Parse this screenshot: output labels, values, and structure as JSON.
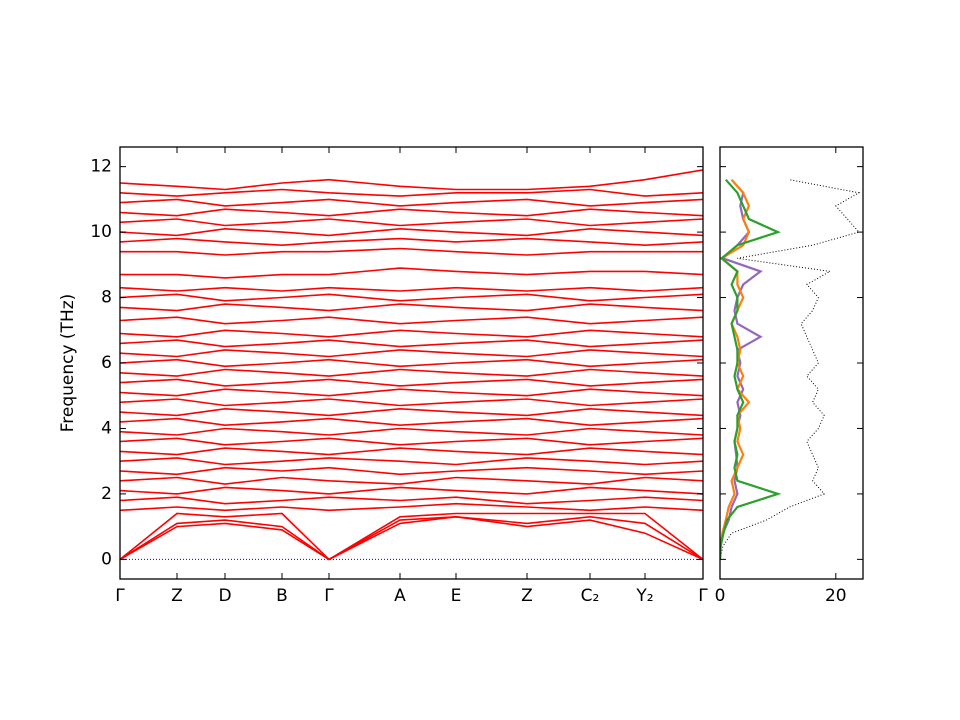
{
  "chart_data": [
    {
      "type": "line",
      "ylabel": "Frequency (THz)",
      "color": "#ff0000",
      "x": [
        0,
        0.57,
        1.05,
        1.62,
        2.09,
        2.8,
        3.36,
        4.07,
        4.7,
        5.25,
        5.83
      ],
      "xlim": [
        0,
        5.83
      ],
      "xticks": [
        {
          "value": 0,
          "label": "Γ"
        },
        {
          "value": 0.57,
          "label": "Z"
        },
        {
          "value": 1.05,
          "label": "D"
        },
        {
          "value": 1.62,
          "label": "B"
        },
        {
          "value": 2.09,
          "label": "Γ"
        },
        {
          "value": 2.8,
          "label": "A"
        },
        {
          "value": 3.36,
          "label": "E"
        },
        {
          "value": 4.07,
          "label": "Z"
        },
        {
          "value": 4.7,
          "label": "C₂"
        },
        {
          "value": 5.25,
          "label": "Y₂"
        },
        {
          "value": 5.83,
          "label": "Γ"
        }
      ],
      "ylim": [
        -0.6,
        12.6
      ],
      "yticks": [
        0,
        2,
        4,
        6,
        8,
        10,
        12
      ],
      "series": [
        {
          "values": [
            0,
            1.0,
            1.1,
            0.9,
            0,
            1.1,
            1.3,
            1.0,
            1.2,
            0.8,
            0
          ]
        },
        {
          "values": [
            0,
            1.1,
            1.2,
            1.0,
            0,
            1.2,
            1.3,
            1.1,
            1.3,
            1.1,
            0
          ]
        },
        {
          "values": [
            0,
            1.4,
            1.3,
            1.4,
            0,
            1.3,
            1.4,
            1.4,
            1.4,
            1.4,
            0
          ]
        },
        {
          "values": [
            1.5,
            1.6,
            1.5,
            1.6,
            1.5,
            1.6,
            1.7,
            1.6,
            1.5,
            1.6,
            1.5
          ]
        },
        {
          "values": [
            1.8,
            1.9,
            1.7,
            1.8,
            1.9,
            1.8,
            1.9,
            1.7,
            1.8,
            1.9,
            1.8
          ]
        },
        {
          "values": [
            2.1,
            2.0,
            2.2,
            2.1,
            2.0,
            2.2,
            2.1,
            2.0,
            2.2,
            2.1,
            2.0
          ]
        },
        {
          "values": [
            2.4,
            2.5,
            2.3,
            2.5,
            2.4,
            2.3,
            2.5,
            2.4,
            2.3,
            2.5,
            2.4
          ]
        },
        {
          "values": [
            2.7,
            2.6,
            2.8,
            2.7,
            2.8,
            2.6,
            2.7,
            2.8,
            2.7,
            2.6,
            2.7
          ]
        },
        {
          "values": [
            3.0,
            3.1,
            2.9,
            3.0,
            3.1,
            3.0,
            2.9,
            3.1,
            3.0,
            2.9,
            3.0
          ]
        },
        {
          "values": [
            3.3,
            3.2,
            3.4,
            3.3,
            3.2,
            3.4,
            3.3,
            3.2,
            3.4,
            3.3,
            3.2
          ]
        },
        {
          "values": [
            3.6,
            3.7,
            3.5,
            3.6,
            3.7,
            3.5,
            3.6,
            3.7,
            3.5,
            3.6,
            3.7
          ]
        },
        {
          "values": [
            3.9,
            3.8,
            4.0,
            3.9,
            3.8,
            4.0,
            3.9,
            3.8,
            4.0,
            3.9,
            3.8
          ]
        },
        {
          "values": [
            4.2,
            4.3,
            4.1,
            4.2,
            4.3,
            4.1,
            4.2,
            4.3,
            4.1,
            4.2,
            4.3
          ]
        },
        {
          "values": [
            4.5,
            4.4,
            4.6,
            4.5,
            4.4,
            4.6,
            4.5,
            4.4,
            4.6,
            4.5,
            4.4
          ]
        },
        {
          "values": [
            4.8,
            4.9,
            4.7,
            4.8,
            4.9,
            4.7,
            4.8,
            4.9,
            4.7,
            4.8,
            4.9
          ]
        },
        {
          "values": [
            5.1,
            5.0,
            5.2,
            5.1,
            5.0,
            5.2,
            5.1,
            5.0,
            5.2,
            5.1,
            5.0
          ]
        },
        {
          "values": [
            5.4,
            5.5,
            5.3,
            5.4,
            5.5,
            5.3,
            5.4,
            5.5,
            5.3,
            5.4,
            5.5
          ]
        },
        {
          "values": [
            5.7,
            5.6,
            5.8,
            5.7,
            5.6,
            5.8,
            5.7,
            5.6,
            5.8,
            5.7,
            5.6
          ]
        },
        {
          "values": [
            6.0,
            6.1,
            5.9,
            6.0,
            6.1,
            5.9,
            6.0,
            6.1,
            5.9,
            6.0,
            6.1
          ]
        },
        {
          "values": [
            6.3,
            6.2,
            6.4,
            6.3,
            6.2,
            6.4,
            6.3,
            6.2,
            6.4,
            6.3,
            6.2
          ]
        },
        {
          "values": [
            6.6,
            6.7,
            6.5,
            6.6,
            6.7,
            6.5,
            6.6,
            6.7,
            6.5,
            6.6,
            6.7
          ]
        },
        {
          "values": [
            6.9,
            6.8,
            7.0,
            6.9,
            6.8,
            7.0,
            6.9,
            6.8,
            7.0,
            6.9,
            6.8
          ]
        },
        {
          "values": [
            7.3,
            7.4,
            7.2,
            7.3,
            7.4,
            7.2,
            7.3,
            7.4,
            7.2,
            7.3,
            7.4
          ]
        },
        {
          "values": [
            7.7,
            7.6,
            7.8,
            7.7,
            7.6,
            7.8,
            7.7,
            7.6,
            7.8,
            7.7,
            7.6
          ]
        },
        {
          "values": [
            8.0,
            8.1,
            7.9,
            8.0,
            8.1,
            7.9,
            8.0,
            8.1,
            7.9,
            8.0,
            8.1
          ]
        },
        {
          "values": [
            8.3,
            8.2,
            8.3,
            8.2,
            8.3,
            8.2,
            8.3,
            8.2,
            8.3,
            8.2,
            8.3
          ]
        },
        {
          "values": [
            8.7,
            8.7,
            8.6,
            8.7,
            8.7,
            8.9,
            8.8,
            8.7,
            8.8,
            8.8,
            8.7
          ]
        },
        {
          "values": [
            9.4,
            9.4,
            9.3,
            9.4,
            9.4,
            9.5,
            9.4,
            9.3,
            9.4,
            9.4,
            9.4
          ]
        },
        {
          "values": [
            9.7,
            9.8,
            9.7,
            9.6,
            9.7,
            9.8,
            9.7,
            9.8,
            9.7,
            9.6,
            9.7
          ]
        },
        {
          "values": [
            10.0,
            9.9,
            10.1,
            10.0,
            9.9,
            10.1,
            10.0,
            9.9,
            10.1,
            10.0,
            9.9
          ]
        },
        {
          "values": [
            10.3,
            10.4,
            10.2,
            10.3,
            10.4,
            10.2,
            10.3,
            10.4,
            10.2,
            10.3,
            10.4
          ]
        },
        {
          "values": [
            10.6,
            10.5,
            10.7,
            10.6,
            10.5,
            10.7,
            10.6,
            10.5,
            10.7,
            10.6,
            10.5
          ]
        },
        {
          "values": [
            10.9,
            11.0,
            10.8,
            10.9,
            11.0,
            10.8,
            10.9,
            11.0,
            10.8,
            10.9,
            11.0
          ]
        },
        {
          "values": [
            11.2,
            11.1,
            11.2,
            11.3,
            11.2,
            11.1,
            11.2,
            11.2,
            11.3,
            11.1,
            11.2
          ]
        },
        {
          "values": [
            11.5,
            11.4,
            11.3,
            11.5,
            11.6,
            11.4,
            11.3,
            11.3,
            11.4,
            11.6,
            11.9
          ]
        }
      ]
    },
    {
      "type": "density",
      "y": [
        0,
        0.4,
        0.8,
        1.2,
        1.6,
        2.0,
        2.4,
        2.8,
        3.2,
        3.6,
        4.0,
        4.4,
        4.8,
        5.2,
        5.6,
        6.0,
        6.4,
        6.8,
        7.2,
        7.6,
        8.0,
        8.4,
        8.8,
        9.2,
        9.6,
        10.0,
        10.4,
        10.8,
        11.2,
        11.6
      ],
      "xlim": [
        0,
        24.7
      ],
      "xticks": [
        0,
        20
      ],
      "ylim": [
        -0.6,
        12.6
      ],
      "yticks": [
        0,
        2,
        4,
        6,
        8,
        10,
        12
      ],
      "series": [
        {
          "color": "#000000",
          "style": "dotted",
          "values": [
            0,
            0.5,
            2,
            8,
            12,
            18,
            16,
            17,
            16,
            15,
            17,
            18,
            16,
            17,
            15,
            17,
            16,
            15,
            14,
            16,
            17,
            15,
            19,
            3,
            16,
            24,
            22,
            20,
            24,
            12
          ]
        },
        {
          "color": "#9467bd",
          "values": [
            0,
            0.1,
            0.5,
            1.5,
            2,
            3,
            2.5,
            3,
            2.8,
            2.5,
            3,
            3.5,
            3,
            4,
            3,
            3.5,
            3,
            7,
            3,
            2.5,
            3,
            4,
            7,
            0.5,
            3,
            5,
            4,
            3.5,
            4,
            2
          ]
        },
        {
          "color": "#ff7f0e",
          "values": [
            0,
            0.1,
            0.4,
            1,
            1.5,
            2.5,
            2,
            3,
            4,
            3,
            3.5,
            3,
            5,
            3,
            4,
            3,
            3.5,
            3,
            2,
            3,
            4,
            3,
            3,
            0.3,
            4,
            5,
            4,
            5,
            4,
            2
          ]
        },
        {
          "color": "#2ca02c",
          "values": [
            0,
            0.1,
            0.6,
            1.2,
            3,
            10,
            3,
            2.5,
            3,
            2.5,
            3,
            3,
            4,
            3,
            2.5,
            3,
            3,
            2.5,
            2,
            3,
            3,
            2,
            3,
            0.3,
            3,
            10,
            5,
            4,
            3,
            1
          ]
        }
      ]
    }
  ]
}
